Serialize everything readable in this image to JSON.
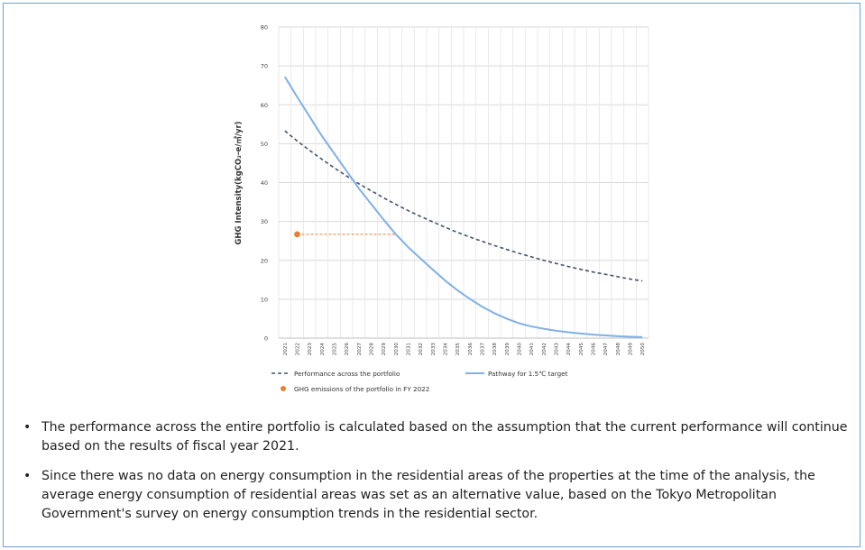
{
  "chart_data": {
    "type": "line",
    "ylabel": "GHG Intensity(kgCO₂-e/㎡/yr)",
    "ylim": [
      0,
      80
    ],
    "yticks": [
      0,
      10,
      20,
      30,
      40,
      50,
      60,
      70,
      80
    ],
    "x": [
      2021,
      2022,
      2023,
      2024,
      2025,
      2026,
      2027,
      2028,
      2029,
      2030,
      2031,
      2032,
      2033,
      2034,
      2035,
      2036,
      2037,
      2038,
      2039,
      2040,
      2041,
      2042,
      2043,
      2044,
      2045,
      2046,
      2047,
      2048,
      2049,
      2050
    ],
    "series": [
      {
        "name": "Performance across the portfolio",
        "style": "dashed",
        "color": "#44546a",
        "values": [
          53.3,
          50.7,
          48.3,
          46.0,
          43.8,
          41.7,
          39.7,
          37.9,
          36.1,
          34.4,
          32.8,
          31.3,
          29.9,
          28.5,
          27.2,
          26.0,
          24.9,
          23.8,
          22.8,
          21.8,
          20.9,
          20.0,
          19.2,
          18.4,
          17.7,
          17.0,
          16.4,
          15.8,
          15.2,
          14.7
        ]
      },
      {
        "name": "Pathway for 1.5℃ target",
        "style": "solid",
        "color": "#7fb0e6",
        "values": [
          67.2,
          62.0,
          57.0,
          52.0,
          47.5,
          43.0,
          38.5,
          34.5,
          30.5,
          26.7,
          23.4,
          20.5,
          17.6,
          14.8,
          12.3,
          10.1,
          8.1,
          6.4,
          5.0,
          3.8,
          3.0,
          2.4,
          1.9,
          1.5,
          1.2,
          0.9,
          0.7,
          0.5,
          0.35,
          0.25
        ]
      }
    ],
    "point": {
      "name": "GHG emissions of the portfolio in FY 2022",
      "color": "#ed7d31",
      "x": 2022,
      "y": 26.7,
      "dashed_to_x": 2030
    },
    "grid": true,
    "legend_position": "bottom"
  },
  "notes": [
    "The performance across the entire portfolio is calculated based on the assumption that the current performance will continue based on the results of fiscal year 2021.",
    "Since there was no data on energy consumption in the residential areas of the properties at the time of the analysis, the average energy consumption of residential areas was set as an alternative value, based on the Tokyo Metropolitan Government's survey on energy consumption trends in the residential sector."
  ],
  "bullet_char": "•"
}
